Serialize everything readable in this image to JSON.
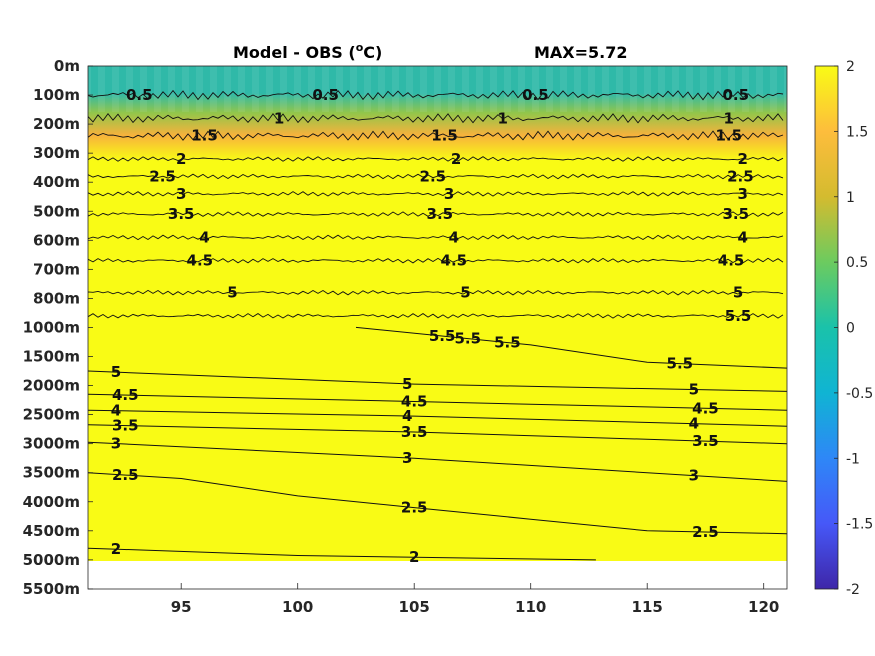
{
  "chart_data": {
    "type": "heatmap",
    "title_left": "Model - OBS (",
    "title_unit_sup": "o",
    "title_unit_end": "C)",
    "title_right": "MAX=5.72",
    "x": {
      "ticks": [
        95,
        100,
        105,
        110,
        115,
        120
      ],
      "range": [
        91,
        121
      ]
    },
    "y": {
      "tick_labels": [
        "0m",
        "100m",
        "200m",
        "300m",
        "400m",
        "500m",
        "600m",
        "700m",
        "800m",
        "1000m",
        "1500m",
        "2000m",
        "2500m",
        "3000m",
        "3500m",
        "4000m",
        "4500m",
        "5000m",
        "5500m"
      ],
      "data_bottom_label": "5000m"
    },
    "colorbar": {
      "ticks": [
        "2",
        "1.5",
        "1",
        "0.5",
        "0",
        "-0.5",
        "-1",
        "-1.5",
        "-2"
      ],
      "colors": [
        "#3e26a8",
        "#4658f8",
        "#2e87f7",
        "#10b4d3",
        "#1ac2aa",
        "#6ccb5f",
        "#d4bb2f",
        "#fdbd3c",
        "#f9fb15"
      ]
    },
    "field_colors": {
      "top_band": "#2fb9a8",
      "mid_band": "#93c64a",
      "warm_band": "#f7b23c",
      "background": "#f9fb15"
    },
    "contours": [
      {
        "row": 1.0,
        "noisy": true,
        "labels": [
          {
            "x": 93.2,
            "text": "0.5"
          },
          {
            "x": 101.2,
            "text": "0.5"
          },
          {
            "x": 110.2,
            "text": "0.5"
          },
          {
            "x": 118.8,
            "text": "0.5"
          }
        ]
      },
      {
        "row": 1.8,
        "noisy": true,
        "labels": [
          {
            "x": 99.2,
            "text": "1"
          },
          {
            "x": 108.8,
            "text": "1"
          },
          {
            "x": 118.5,
            "text": "1"
          }
        ]
      },
      {
        "row": 2.4,
        "noisy": true,
        "labels": [
          {
            "x": 96.0,
            "text": "1.5"
          },
          {
            "x": 106.3,
            "text": "1.5"
          },
          {
            "x": 118.5,
            "text": "1.5"
          }
        ]
      },
      {
        "row": 3.2,
        "noisy": true,
        "labels": [
          {
            "x": 95.0,
            "text": "2"
          },
          {
            "x": 106.8,
            "text": "2"
          },
          {
            "x": 119.1,
            "text": "2"
          }
        ]
      },
      {
        "row": 3.8,
        "noisy": true,
        "labels": [
          {
            "x": 94.2,
            "text": "2.5"
          },
          {
            "x": 105.8,
            "text": "2.5"
          },
          {
            "x": 119.0,
            "text": "2.5"
          }
        ]
      },
      {
        "row": 4.4,
        "noisy": true,
        "labels": [
          {
            "x": 95.0,
            "text": "3"
          },
          {
            "x": 106.5,
            "text": "3"
          },
          {
            "x": 119.1,
            "text": "3"
          }
        ]
      },
      {
        "row": 5.1,
        "noisy": true,
        "labels": [
          {
            "x": 95.0,
            "text": "3.5"
          },
          {
            "x": 106.1,
            "text": "3.5"
          },
          {
            "x": 118.8,
            "text": "3.5"
          }
        ]
      },
      {
        "row": 5.9,
        "noisy": true,
        "labels": [
          {
            "x": 96.0,
            "text": "4"
          },
          {
            "x": 106.7,
            "text": "4"
          },
          {
            "x": 119.1,
            "text": "4"
          }
        ]
      },
      {
        "row": 6.7,
        "noisy": true,
        "labels": [
          {
            "x": 95.8,
            "text": "4.5"
          },
          {
            "x": 106.7,
            "text": "4.5"
          },
          {
            "x": 118.6,
            "text": "4.5"
          }
        ]
      },
      {
        "row": 7.8,
        "noisy": true,
        "labels": [
          {
            "x": 97.2,
            "text": "5"
          },
          {
            "x": 107.2,
            "text": "5"
          },
          {
            "x": 118.9,
            "text": "5"
          }
        ]
      },
      {
        "row": 8.6,
        "noisy": true,
        "labels": [
          {
            "x": 118.9,
            "text": "5.5"
          }
        ]
      }
    ],
    "deep_contours": [
      {
        "level": "5.5",
        "rows": [
          [
            102.5,
            9.0
          ],
          [
            110.0,
            9.6
          ],
          [
            115.0,
            10.2
          ],
          [
            121.0,
            10.4
          ]
        ],
        "labels": [
          {
            "x": 106.2,
            "text": "5.5"
          },
          {
            "x": 107.3,
            "text": "5.5"
          },
          {
            "x": 109.0,
            "text": "5.5"
          },
          {
            "x": 116.4,
            "text": "5.5"
          }
        ]
      },
      {
        "level": "5",
        "rows": [
          [
            91,
            10.5
          ],
          [
            105,
            10.95
          ],
          [
            121,
            11.2
          ]
        ],
        "labels": [
          {
            "x": 92.2,
            "text": "5"
          },
          {
            "x": 104.7,
            "text": "5"
          },
          {
            "x": 117.0,
            "text": "5"
          }
        ]
      },
      {
        "level": "4.5",
        "rows": [
          [
            91,
            11.3
          ],
          [
            105,
            11.55
          ],
          [
            121,
            11.85
          ]
        ],
        "labels": [
          {
            "x": 92.6,
            "text": "4.5"
          },
          {
            "x": 105.0,
            "text": "4.5"
          },
          {
            "x": 117.5,
            "text": "4.5"
          }
        ]
      },
      {
        "level": "4",
        "rows": [
          [
            91,
            11.85
          ],
          [
            105,
            12.05
          ],
          [
            121,
            12.4
          ]
        ],
        "labels": [
          {
            "x": 92.2,
            "text": "4"
          },
          {
            "x": 104.7,
            "text": "4"
          },
          {
            "x": 117.0,
            "text": "4"
          }
        ]
      },
      {
        "level": "3.5",
        "rows": [
          [
            91,
            12.35
          ],
          [
            105,
            12.6
          ],
          [
            121,
            13.0
          ]
        ],
        "labels": [
          {
            "x": 92.6,
            "text": "3.5"
          },
          {
            "x": 105.0,
            "text": "3.5"
          },
          {
            "x": 117.5,
            "text": "3.5"
          }
        ]
      },
      {
        "level": "3",
        "rows": [
          [
            91,
            12.95
          ],
          [
            105,
            13.5
          ],
          [
            121,
            14.3
          ]
        ],
        "labels": [
          {
            "x": 92.2,
            "text": "3"
          },
          {
            "x": 104.7,
            "text": "3"
          },
          {
            "x": 117.0,
            "text": "3"
          }
        ]
      },
      {
        "level": "2.5",
        "rows": [
          [
            91,
            14.0
          ],
          [
            95,
            14.2
          ],
          [
            100,
            14.8
          ],
          [
            105,
            15.2
          ],
          [
            110,
            15.6
          ],
          [
            115,
            16.0
          ],
          [
            121,
            16.1
          ]
        ],
        "labels": [
          {
            "x": 92.6,
            "text": "2.5"
          },
          {
            "x": 105.0,
            "text": "2.5"
          },
          {
            "x": 117.5,
            "text": "2.5"
          }
        ]
      },
      {
        "level": "2",
        "rows": [
          [
            91,
            16.6
          ],
          [
            100,
            16.85
          ],
          [
            112.8,
            17.0
          ]
        ],
        "labels": [
          {
            "x": 92.2,
            "text": "2"
          },
          {
            "x": 105.0,
            "text": "2"
          }
        ]
      }
    ]
  }
}
